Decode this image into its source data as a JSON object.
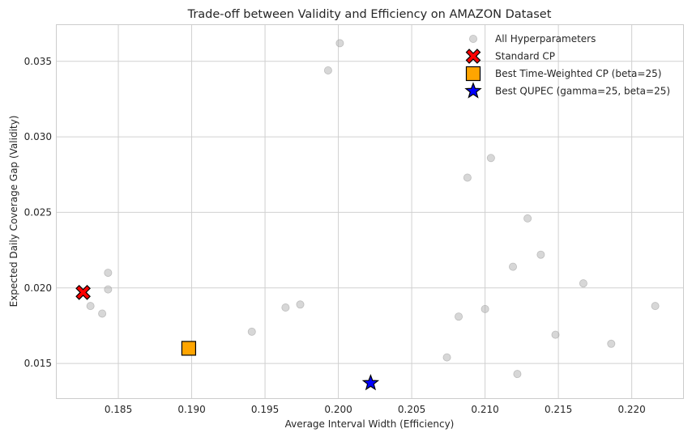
{
  "chart_data": {
    "type": "scatter",
    "title": "Trade-off between Validity and Efficiency on AMAZON Dataset",
    "xlabel": "Average Interval Width (Efficiency)",
    "ylabel": "Expected Daily Coverage Gap (Validity)",
    "xlim": [
      0.1808,
      0.2235
    ],
    "ylim": [
      0.0127,
      0.0374
    ],
    "xticks": [
      0.185,
      0.19,
      0.195,
      0.2,
      0.205,
      0.21,
      0.215,
      0.22
    ],
    "xtick_labels": [
      "0.185",
      "0.190",
      "0.195",
      "0.200",
      "0.205",
      "0.210",
      "0.215",
      "0.220"
    ],
    "yticks": [
      0.015,
      0.02,
      0.025,
      0.03,
      0.035
    ],
    "ytick_labels": [
      "0.015",
      "0.020",
      "0.025",
      "0.030",
      "0.035"
    ],
    "grid": true,
    "legend_position": "top-right",
    "series": [
      {
        "name": "All Hyperparameters",
        "marker": "circle",
        "color": "#b0b0b0",
        "points": [
          [
            0.2001,
            0.0362
          ],
          [
            0.1993,
            0.0344
          ],
          [
            0.2104,
            0.0286
          ],
          [
            0.2088,
            0.0273
          ],
          [
            0.2129,
            0.0246
          ],
          [
            0.2138,
            0.0222
          ],
          [
            0.2119,
            0.0214
          ],
          [
            0.1843,
            0.021
          ],
          [
            0.1843,
            0.0199
          ],
          [
            0.2167,
            0.0203
          ],
          [
            0.1831,
            0.0188
          ],
          [
            0.1839,
            0.0183
          ],
          [
            0.1974,
            0.0189
          ],
          [
            0.1964,
            0.0187
          ],
          [
            0.2216,
            0.0188
          ],
          [
            0.21,
            0.0186
          ],
          [
            0.2082,
            0.0181
          ],
          [
            0.1941,
            0.0171
          ],
          [
            0.2148,
            0.0169
          ],
          [
            0.2186,
            0.0163
          ],
          [
            0.2074,
            0.0154
          ],
          [
            0.2122,
            0.0143
          ]
        ]
      },
      {
        "name": "Standard CP",
        "marker": "X",
        "color": "#ff0000",
        "points": [
          [
            0.1826,
            0.0197
          ]
        ]
      },
      {
        "name": "Best Time-Weighted CP (beta=25)",
        "marker": "square",
        "color": "#ffa500",
        "points": [
          [
            0.1898,
            0.016
          ]
        ]
      },
      {
        "name": "Best QUPEC (gamma=25, beta=25)",
        "marker": "star",
        "color": "#0000ff",
        "points": [
          [
            0.2022,
            0.0137
          ]
        ]
      }
    ]
  }
}
